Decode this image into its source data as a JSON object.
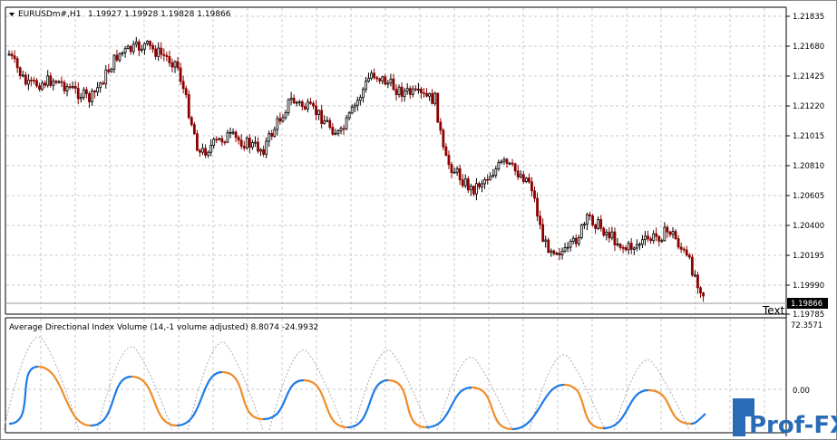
{
  "main_chart": {
    "symbol_header": "EURUSDm#,H1",
    "ohlc": [
      "1.19927",
      "1.19928",
      "1.19828",
      "1.19866"
    ],
    "price_ticks": [
      "1.21835",
      "1.21680",
      "1.21425",
      "1.21220",
      "1.21015",
      "1.20810",
      "1.20605",
      "1.20400",
      "1.20195",
      "1.19990",
      "1.19785"
    ],
    "current_price": "1.19866",
    "text_object": "Text"
  },
  "indicator": {
    "title": "Average Directional Index Volume (14,-1 volume adjusted) 8.8074 -24.9932",
    "ticks": [
      "72.3571",
      "0.00"
    ]
  },
  "watermark": "Prof-FX",
  "chart_data": {
    "type": "candlestick",
    "title": "EURUSDm#,H1",
    "ylim": [
      1.1978,
      1.219
    ],
    "grid": true,
    "colors": {
      "bull": "#000000",
      "bear": "#8b0000",
      "osc_up": "#1e7be6",
      "osc_down": "#f08c2a"
    }
  }
}
